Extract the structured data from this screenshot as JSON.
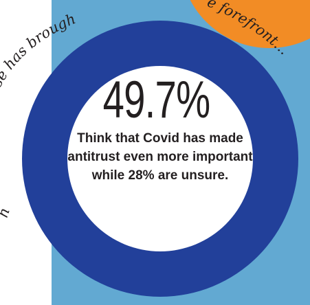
{
  "stat": {
    "value": "49.7%",
    "caption": "Think that Covid has made antitrust even more important while 28% are unsure."
  },
  "script_text": {
    "left_arc": "se has brough",
    "right_arc": "e forefront...",
    "left_lower": "h"
  },
  "colors": {
    "ring": "#22409a",
    "panel": "#62a9d2",
    "accent": "#f28c25"
  }
}
